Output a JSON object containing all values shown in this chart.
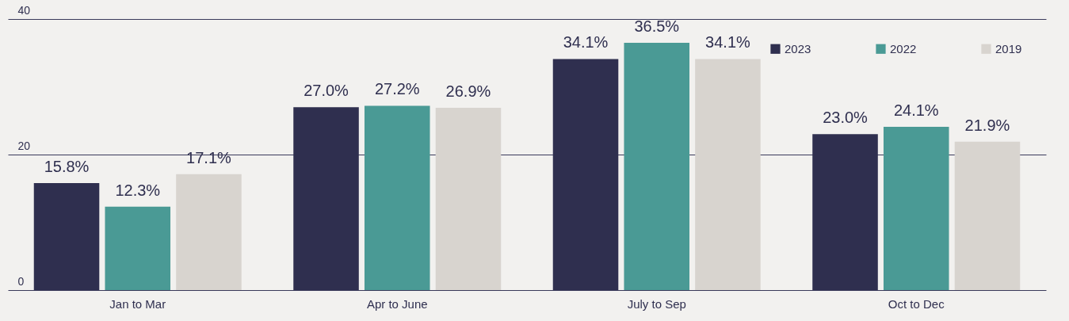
{
  "chart_data": {
    "type": "bar",
    "categories": [
      "Jan to Mar",
      "Apr to June",
      "July to Sep",
      "Oct to Dec"
    ],
    "series": [
      {
        "name": "2023",
        "color": "#2f2f4f",
        "values": [
          15.8,
          27.0,
          34.1,
          23.0
        ],
        "value_labels": [
          "15.8%",
          "27.0%",
          "34.1%",
          "23.0%"
        ]
      },
      {
        "name": "2022",
        "color": "#4a9a95",
        "values": [
          12.3,
          27.2,
          36.5,
          24.1
        ],
        "value_labels": [
          "12.3%",
          "27.2%",
          "36.5%",
          "24.1%"
        ]
      },
      {
        "name": "2019",
        "color": "#d8d4cf",
        "values": [
          17.1,
          26.9,
          34.1,
          21.9
        ],
        "value_labels": [
          "17.1%",
          "26.9%",
          "34.1%",
          "21.9%"
        ]
      }
    ],
    "ylim": [
      0,
      40
    ],
    "yticks": [
      0,
      20,
      40
    ],
    "grid": "y",
    "legend": "top right"
  }
}
